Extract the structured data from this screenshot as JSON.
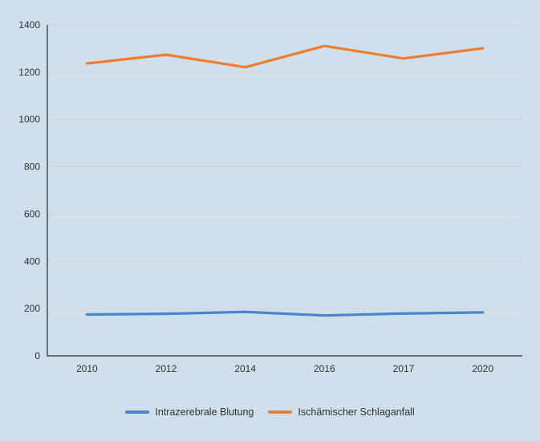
{
  "chart_data": {
    "type": "line",
    "title": "",
    "xlabel": "",
    "ylabel": "",
    "categories": [
      "2010",
      "2012",
      "2014",
      "2016",
      "2017",
      "2020"
    ],
    "series": [
      {
        "name": "Intrazerebrale Blutung",
        "color": "#4A86C8",
        "values": [
          175,
          178,
          186,
          171,
          179,
          184
        ]
      },
      {
        "name": "Ischämischer Schlaganfall",
        "color": "#ED7D31",
        "values": [
          1237,
          1274,
          1221,
          1311,
          1258,
          1301
        ]
      }
    ],
    "ylim": [
      0,
      1400
    ],
    "yticks": [
      0,
      200,
      400,
      600,
      800,
      1000,
      1200,
      1400
    ],
    "grid": true,
    "legend_position": "bottom"
  },
  "colors": {
    "background": "#CFE0EC",
    "gridline": "#D0D0D0",
    "axis": "#4A4A4A",
    "text": "#303030"
  }
}
